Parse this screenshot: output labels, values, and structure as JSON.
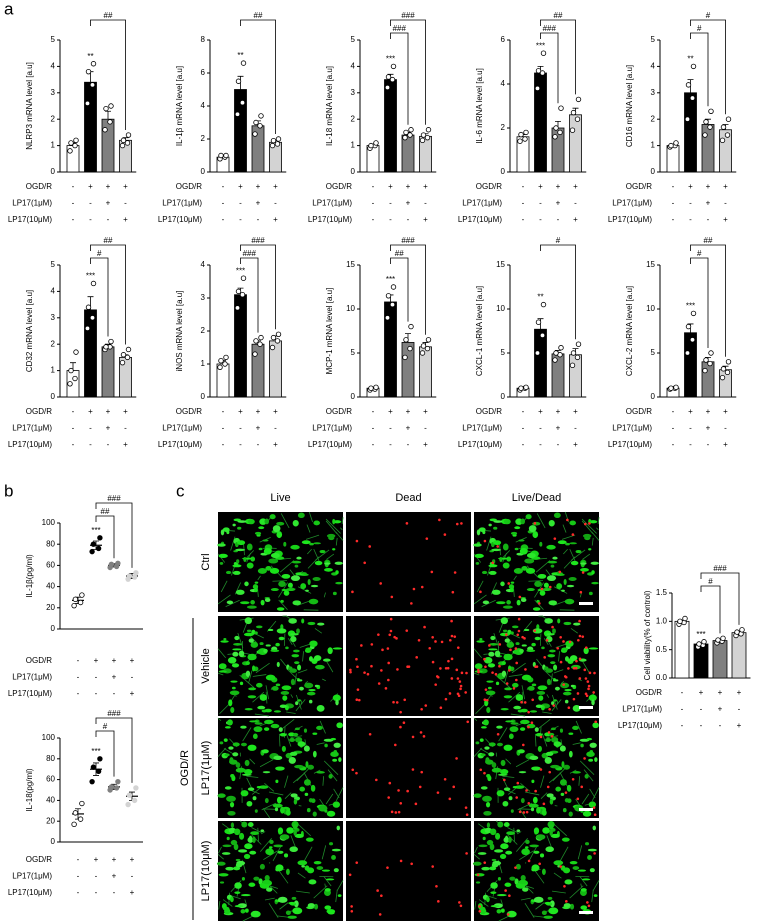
{
  "panels": {
    "a": "a",
    "b": "b",
    "c": "c"
  },
  "treatments": [
    {
      "label": "OGD/R",
      "signs": [
        "-",
        "+",
        "+",
        "+"
      ]
    },
    {
      "label": "LP17(1μM)",
      "signs": [
        "-",
        "-",
        "+",
        "-"
      ]
    },
    {
      "label": "LP17(10μM)",
      "signs": [
        "-",
        "-",
        "-",
        "+"
      ]
    }
  ],
  "images": {
    "columns": [
      "Live",
      "Dead",
      "Live/Dead"
    ],
    "rows": [
      "Ctrl",
      "Vehicle",
      "LP17(1μM)",
      "LP17(10μM)"
    ],
    "group": "OGD/R"
  },
  "chart_data": [
    {
      "type": "bar",
      "ylabel": "NLRP3 mRNA level [a.u]",
      "values": [
        1.0,
        3.4,
        2.0,
        1.2
      ],
      "errors": [
        0.1,
        0.4,
        0.3,
        0.1
      ],
      "points": [
        [
          0.8,
          1.0,
          1.1,
          1.2
        ],
        [
          2.6,
          3.3,
          3.8,
          4.1
        ],
        [
          1.6,
          1.9,
          2.4,
          2.5
        ],
        [
          1.0,
          1.1,
          1.2,
          1.4
        ]
      ],
      "colors": [
        "#ffffff",
        "#000000",
        "#808080",
        "#d3d3d3"
      ],
      "ylim": [
        0,
        5
      ],
      "yticks": [
        0,
        1,
        2,
        3,
        4,
        5
      ],
      "significance": {
        "index": 1,
        "label": "**"
      },
      "comparisons": [
        {
          "from": 1,
          "to": 3,
          "label": "##"
        }
      ]
    },
    {
      "type": "bar",
      "ylabel": "IL-1β mRNA level [a.u]",
      "values": [
        0.9,
        5.0,
        2.8,
        1.8
      ],
      "errors": [
        0.1,
        0.8,
        0.3,
        0.1
      ],
      "points": [
        [
          0.8,
          0.9,
          1.0,
          1.0
        ],
        [
          3.5,
          4.2,
          5.5,
          6.6
        ],
        [
          2.3,
          2.8,
          3.0,
          3.4
        ],
        [
          1.6,
          1.7,
          1.9,
          2.0
        ]
      ],
      "colors": [
        "#ffffff",
        "#000000",
        "#808080",
        "#d3d3d3"
      ],
      "ylim": [
        0,
        8
      ],
      "yticks": [
        0,
        2,
        4,
        6,
        8
      ],
      "significance": {
        "index": 1,
        "label": "**"
      },
      "comparisons": [
        {
          "from": 1,
          "to": 3,
          "label": "##"
        }
      ]
    },
    {
      "type": "bar",
      "ylabel": "IL-18 mRNA level [a.u]",
      "values": [
        1.0,
        3.5,
        1.4,
        1.35
      ],
      "errors": [
        0.05,
        0.2,
        0.1,
        0.1
      ],
      "points": [
        [
          0.9,
          1.0,
          1.0,
          1.1
        ],
        [
          3.2,
          3.5,
          3.6,
          4.0
        ],
        [
          1.3,
          1.4,
          1.5,
          1.6
        ],
        [
          1.2,
          1.3,
          1.4,
          1.6
        ]
      ],
      "colors": [
        "#ffffff",
        "#000000",
        "#808080",
        "#d3d3d3"
      ],
      "ylim": [
        0,
        5
      ],
      "yticks": [
        0,
        1,
        2,
        3,
        4,
        5
      ],
      "significance": {
        "index": 1,
        "label": "***"
      },
      "comparisons": [
        {
          "from": 1,
          "to": 3,
          "label": "###"
        },
        {
          "from": 1,
          "to": 2,
          "label": "###"
        }
      ]
    },
    {
      "type": "bar",
      "ylabel": "IL-6 mRNA level [a.u]",
      "values": [
        1.6,
        4.5,
        2.0,
        2.6
      ],
      "errors": [
        0.1,
        0.3,
        0.3,
        0.3
      ],
      "points": [
        [
          1.4,
          1.5,
          1.7,
          1.8
        ],
        [
          3.8,
          4.5,
          4.6,
          5.4
        ],
        [
          1.6,
          1.8,
          2.0,
          2.9
        ],
        [
          1.9,
          2.4,
          2.7,
          3.3
        ]
      ],
      "colors": [
        "#ffffff",
        "#000000",
        "#808080",
        "#d3d3d3"
      ],
      "ylim": [
        0,
        6
      ],
      "yticks": [
        0,
        2,
        4,
        6
      ],
      "significance": {
        "index": 1,
        "label": "***"
      },
      "comparisons": [
        {
          "from": 1,
          "to": 3,
          "label": "##"
        },
        {
          "from": 1,
          "to": 2,
          "label": "###"
        }
      ]
    },
    {
      "type": "bar",
      "ylabel": "CD16 mRNA level [a.u]",
      "values": [
        1.0,
        3.0,
        1.8,
        1.6
      ],
      "errors": [
        0.05,
        0.5,
        0.2,
        0.2
      ],
      "points": [
        [
          0.95,
          1.0,
          1.0,
          1.1
        ],
        [
          2.0,
          2.8,
          3.3,
          4.0
        ],
        [
          1.4,
          1.7,
          1.9,
          2.3
        ],
        [
          1.2,
          1.4,
          1.7,
          2.0
        ]
      ],
      "colors": [
        "#ffffff",
        "#000000",
        "#808080",
        "#d3d3d3"
      ],
      "ylim": [
        0,
        5
      ],
      "yticks": [
        0,
        1,
        2,
        3,
        4,
        5
      ],
      "significance": {
        "index": 1,
        "label": "**"
      },
      "comparisons": [
        {
          "from": 1,
          "to": 3,
          "label": "#"
        },
        {
          "from": 1,
          "to": 2,
          "label": "#"
        }
      ]
    },
    {
      "type": "bar",
      "ylabel": "CD32 mRNA level [a.u]",
      "values": [
        1.0,
        3.3,
        1.9,
        1.5
      ],
      "errors": [
        0.3,
        0.5,
        0.1,
        0.1
      ],
      "points": [
        [
          0.5,
          0.7,
          1.0,
          1.7
        ],
        [
          2.6,
          3.0,
          3.4,
          4.3
        ],
        [
          1.8,
          1.9,
          1.9,
          2.1
        ],
        [
          1.3,
          1.5,
          1.6,
          1.8
        ]
      ],
      "colors": [
        "#ffffff",
        "#000000",
        "#808080",
        "#d3d3d3"
      ],
      "ylim": [
        0,
        5
      ],
      "yticks": [
        0,
        1,
        2,
        3,
        4,
        5
      ],
      "significance": {
        "index": 1,
        "label": "***"
      },
      "comparisons": [
        {
          "from": 1,
          "to": 3,
          "label": "##"
        },
        {
          "from": 1,
          "to": 2,
          "label": "#"
        }
      ]
    },
    {
      "type": "bar",
      "ylabel": "iNOS mRNA level [a.u]",
      "values": [
        1.0,
        3.1,
        1.6,
        1.7
      ],
      "errors": [
        0.1,
        0.2,
        0.1,
        0.15
      ],
      "points": [
        [
          0.9,
          1.0,
          1.1,
          1.2
        ],
        [
          2.7,
          3.1,
          3.2,
          3.6
        ],
        [
          1.3,
          1.6,
          1.7,
          1.8
        ],
        [
          1.5,
          1.7,
          1.8,
          1.9
        ]
      ],
      "colors": [
        "#ffffff",
        "#000000",
        "#808080",
        "#d3d3d3"
      ],
      "ylim": [
        0,
        4
      ],
      "yticks": [
        0,
        1,
        2,
        3,
        4
      ],
      "significance": {
        "index": 1,
        "label": "***"
      },
      "comparisons": [
        {
          "from": 1,
          "to": 3,
          "label": "###"
        },
        {
          "from": 1,
          "to": 2,
          "label": "###"
        }
      ]
    },
    {
      "type": "bar",
      "ylabel": "MCP-1 mRNA level [a.u]",
      "values": [
        1.0,
        10.8,
        6.2,
        5.7
      ],
      "errors": [
        0.1,
        0.8,
        1.0,
        0.5
      ],
      "points": [
        [
          0.8,
          0.9,
          1.0,
          1.1
        ],
        [
          9.0,
          10.5,
          11.5,
          12.5
        ],
        [
          4.5,
          5.5,
          6.5,
          8.0
        ],
        [
          5.0,
          5.5,
          5.8,
          6.5
        ]
      ],
      "colors": [
        "#ffffff",
        "#000000",
        "#808080",
        "#d3d3d3"
      ],
      "ylim": [
        0,
        15
      ],
      "yticks": [
        0,
        5,
        10,
        15
      ],
      "significance": {
        "index": 1,
        "label": "***"
      },
      "comparisons": [
        {
          "from": 1,
          "to": 3,
          "label": "###"
        },
        {
          "from": 1,
          "to": 2,
          "label": "##"
        }
      ]
    },
    {
      "type": "bar",
      "ylabel": "CXCL-1 mRNA level [a.u]",
      "values": [
        1.0,
        7.7,
        4.9,
        4.8
      ],
      "errors": [
        0.1,
        1.2,
        0.4,
        0.7
      ],
      "points": [
        [
          0.8,
          1.0,
          1.0,
          1.1
        ],
        [
          5.0,
          7.0,
          8.5,
          10.5
        ],
        [
          4.2,
          4.8,
          5.0,
          5.6
        ],
        [
          3.6,
          4.5,
          5.0,
          6.0
        ]
      ],
      "colors": [
        "#ffffff",
        "#000000",
        "#808080",
        "#d3d3d3"
      ],
      "ylim": [
        0,
        15
      ],
      "yticks": [
        0,
        5,
        10,
        15
      ],
      "significance": {
        "index": 1,
        "label": "**"
      },
      "comparisons": [
        {
          "from": 1,
          "to": 3,
          "label": "#"
        }
      ]
    },
    {
      "type": "bar",
      "ylabel": "CXCL-2 mRNA level [a.u]",
      "values": [
        1.0,
        7.3,
        4.0,
        3.1
      ],
      "errors": [
        0.1,
        1.0,
        0.5,
        0.4
      ],
      "points": [
        [
          0.9,
          1.0,
          1.0,
          1.1
        ],
        [
          5.0,
          6.5,
          8.0,
          9.5
        ],
        [
          3.0,
          3.8,
          4.2,
          5.0
        ],
        [
          2.2,
          2.8,
          3.2,
          4.0
        ]
      ],
      "colors": [
        "#ffffff",
        "#000000",
        "#808080",
        "#d3d3d3"
      ],
      "ylim": [
        0,
        15
      ],
      "yticks": [
        0,
        5,
        10,
        15
      ],
      "significance": {
        "index": 1,
        "label": "***"
      },
      "comparisons": [
        {
          "from": 1,
          "to": 3,
          "label": "##"
        },
        {
          "from": 1,
          "to": 2,
          "label": "#"
        }
      ]
    },
    {
      "type": "dot",
      "ylabel": "IL-1β(pg/ml)",
      "values": [
        27,
        79,
        60,
        50
      ],
      "errors": [
        3,
        4,
        1.5,
        2.5
      ],
      "points": [
        [
          22,
          25,
          28,
          32
        ],
        [
          73,
          76,
          80,
          86
        ],
        [
          58,
          59,
          61,
          62
        ],
        [
          47,
          49,
          50,
          53
        ]
      ],
      "colors": [
        "#ffffff",
        "#000000",
        "#808080",
        "#d3d3d3"
      ],
      "ylim": [
        0,
        100
      ],
      "yticks": [
        0,
        20,
        40,
        60,
        80,
        100
      ],
      "significance": {
        "index": 1,
        "label": "***"
      },
      "comparisons": [
        {
          "from": 1,
          "to": 3,
          "label": "###"
        },
        {
          "from": 1,
          "to": 2,
          "label": "##"
        }
      ]
    },
    {
      "type": "dot",
      "ylabel": "IL-18(pg/ml)",
      "values": [
        27,
        70,
        53,
        44
      ],
      "errors": [
        5,
        6,
        2.5,
        4
      ],
      "points": [
        [
          17,
          22,
          28,
          37
        ],
        [
          58,
          68,
          72,
          80
        ],
        [
          50,
          52,
          53,
          58
        ],
        [
          36,
          40,
          45,
          52
        ]
      ],
      "colors": [
        "#ffffff",
        "#000000",
        "#808080",
        "#d3d3d3"
      ],
      "ylim": [
        0,
        100
      ],
      "yticks": [
        0,
        20,
        40,
        60,
        80,
        100
      ],
      "significance": {
        "index": 1,
        "label": "***"
      },
      "comparisons": [
        {
          "from": 1,
          "to": 3,
          "label": "###"
        },
        {
          "from": 1,
          "to": 2,
          "label": "#"
        }
      ]
    },
    {
      "type": "bar",
      "ylabel": "Cell viability(% of control)",
      "values": [
        1.0,
        0.6,
        0.66,
        0.8
      ],
      "errors": [
        0.02,
        0.02,
        0.02,
        0.03
      ],
      "points": [
        [
          0.95,
          0.98,
          1.0,
          1.05
        ],
        [
          0.55,
          0.58,
          0.6,
          0.64
        ],
        [
          0.62,
          0.65,
          0.67,
          0.7
        ],
        [
          0.75,
          0.78,
          0.81,
          0.85
        ]
      ],
      "colors": [
        "#ffffff",
        "#000000",
        "#808080",
        "#d3d3d3"
      ],
      "ylim": [
        0,
        1.5
      ],
      "yticks": [
        {
          "value": 0,
          "label": "0.0"
        },
        0.5,
        {
          "value": 1,
          "label": "1.0"
        },
        1.5
      ],
      "significance": {
        "index": 1,
        "label": "***"
      },
      "comparisons": [
        {
          "from": 1,
          "to": 3,
          "label": "###"
        },
        {
          "from": 1,
          "to": 2,
          "label": "#"
        }
      ]
    }
  ]
}
